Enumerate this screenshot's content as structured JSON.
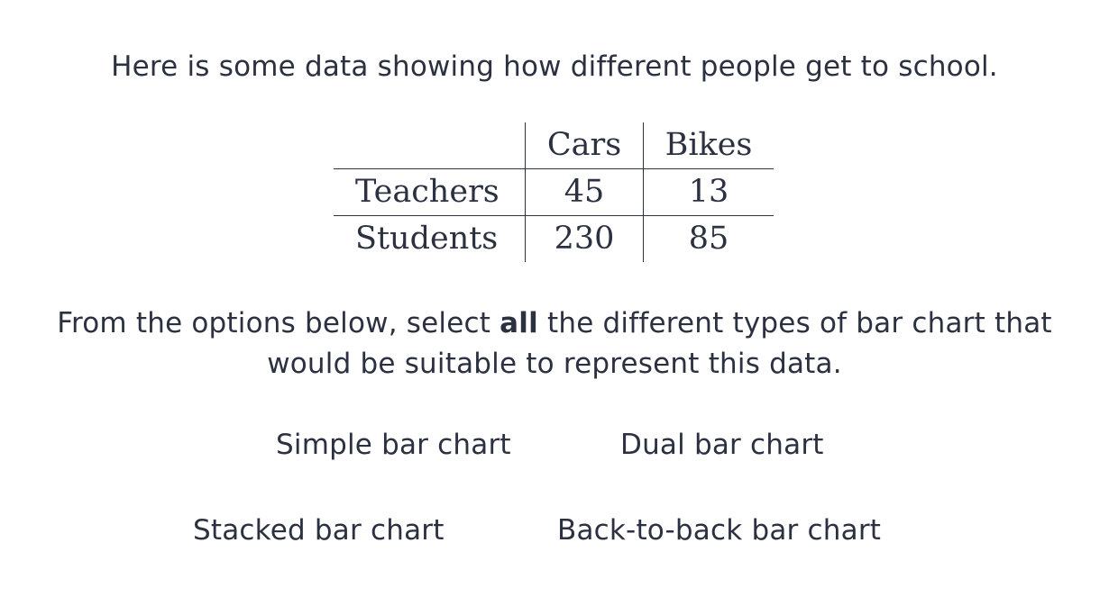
{
  "intro": "Here is some data showing how different people get to school.",
  "table": {
    "columns": [
      "Cars",
      "Bikes"
    ],
    "rows": [
      {
        "label": "Teachers",
        "values": [
          "45",
          "13"
        ]
      },
      {
        "label": "Students",
        "values": [
          "230",
          "85"
        ]
      }
    ]
  },
  "question": {
    "before": "From the options below, select ",
    "bold": "all",
    "after": " the different types of bar chart that",
    "line2": "would be suitable to represent this data."
  },
  "options": [
    {
      "label": "Simple bar chart"
    },
    {
      "label": "Dual bar chart"
    },
    {
      "label": "Stacked bar chart"
    },
    {
      "label": "Back-to-back bar chart"
    }
  ]
}
